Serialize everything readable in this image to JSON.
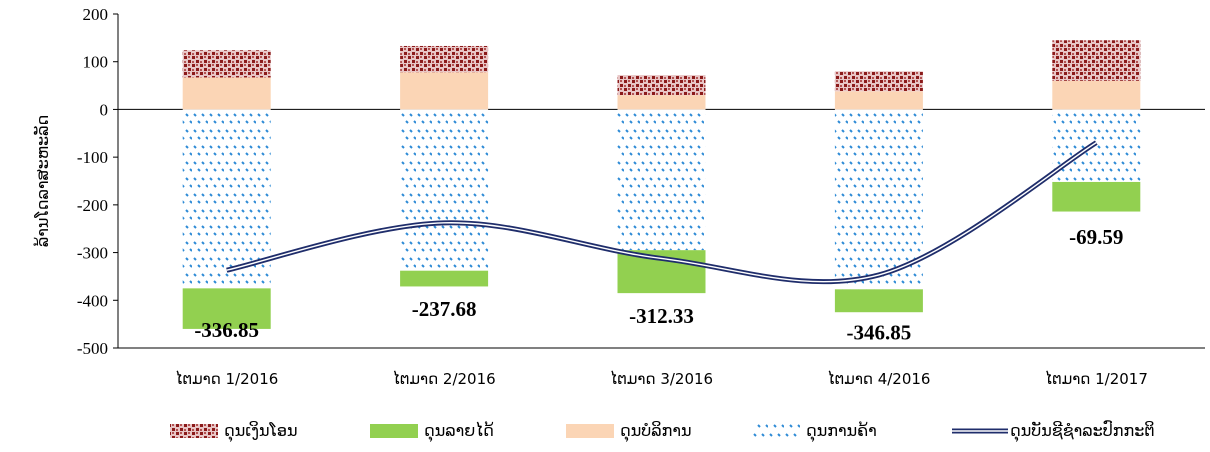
{
  "chart_data": {
    "type": "bar",
    "stacked": true,
    "categories": [
      "ໄຕມາດ 1/2016",
      "ໄຕມາດ 2/2016",
      "ໄຕມາດ 3/2016",
      "ໄຕມາດ 4/2016",
      "ໄຕມາດ 1/2017"
    ],
    "ylabel": "ລ້ານໂດລາສະຫະລັດ",
    "yticks": [
      200,
      100,
      0,
      -100,
      -200,
      -300,
      -400,
      -500
    ],
    "ylim": [
      -500,
      200
    ],
    "grid": false,
    "legend_position": "bottom",
    "series": [
      {
        "name": "ດຸນເງິນໂອນ",
        "kind": "bar",
        "color": "#8b1a1a",
        "values": [
          57,
          55,
          42,
          42,
          85
        ]
      },
      {
        "name": "ດຸນລາຍໄດ້",
        "kind": "bar",
        "color": "#92d050",
        "values": [
          -85,
          -33,
          -90,
          -48,
          -62
        ]
      },
      {
        "name": "ດຸນບໍລິການ",
        "kind": "bar",
        "color": "#fbd5b5",
        "values": [
          67,
          78,
          30,
          38,
          60
        ]
      },
      {
        "name": "ດຸນການຄ້າ",
        "kind": "bar",
        "color": "#2e8bd6",
        "values": [
          -375,
          -338,
          -295,
          -377,
          -152
        ]
      },
      {
        "name": "ດຸນບັນຊີຊຳລະປົກກະຕິ",
        "kind": "line",
        "color": "#1f2d6b",
        "values": [
          -336.85,
          -237.68,
          -312.33,
          -346.85,
          -69.59
        ]
      }
    ],
    "data_labels": [
      "-336.85",
      "-237.68",
      "-312.33",
      "-346.85",
      "-69.59"
    ]
  }
}
